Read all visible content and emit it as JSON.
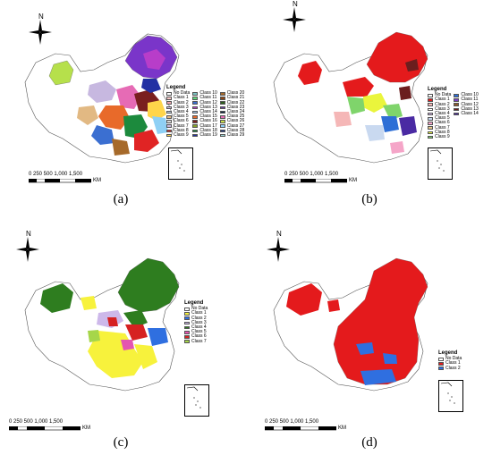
{
  "panels": [
    {
      "label": "(a)",
      "north": "N",
      "legend_title": "Legend",
      "scale": {
        "labels": "0  250 500   1,000    1,500",
        "unit": "KM"
      },
      "legend": [
        {
          "label": "No Data",
          "color": "#ffffff"
        },
        {
          "label": "Class 1",
          "color": "#f6c6c6"
        },
        {
          "label": "Class 2",
          "color": "#f3a7b0"
        },
        {
          "label": "Class 3",
          "color": "#d9c3e6"
        },
        {
          "label": "Class 4",
          "color": "#c3d6e8"
        },
        {
          "label": "Class 5",
          "color": "#e2b983"
        },
        {
          "label": "Class 6",
          "color": "#d9d9d9"
        },
        {
          "label": "Class 7",
          "color": "#c7b8e0"
        },
        {
          "label": "Class 8",
          "color": "#e02424"
        },
        {
          "label": "Class 9",
          "color": "#ffd54a"
        },
        {
          "label": "Class 10",
          "color": "#7cc4c4"
        },
        {
          "label": "Class 11",
          "color": "#5fd67a"
        },
        {
          "label": "Class 12",
          "color": "#3b6fd1"
        },
        {
          "label": "Class 13",
          "color": "#b83dc9"
        },
        {
          "label": "Class 14",
          "color": "#a3c8f0"
        },
        {
          "label": "Class 15",
          "color": "#e86a2a"
        },
        {
          "label": "Class 16",
          "color": "#7a1f1f"
        },
        {
          "label": "Class 17",
          "color": "#88a32b"
        },
        {
          "label": "Class 18",
          "color": "#1c8a3d"
        },
        {
          "label": "Class 19",
          "color": "#2230a3"
        },
        {
          "label": "Class 20",
          "color": "#a66a2a"
        },
        {
          "label": "Class 21",
          "color": "#8b4513"
        },
        {
          "label": "Class 22",
          "color": "#2e5e1e"
        },
        {
          "label": "Class 23",
          "color": "#6b3fa0"
        },
        {
          "label": "Class 24",
          "color": "#0d2240"
        },
        {
          "label": "Class 25",
          "color": "#e66bb5"
        },
        {
          "label": "Class 26",
          "color": "#c9e04b"
        },
        {
          "label": "Class 27",
          "color": "#8fd0f5"
        },
        {
          "label": "Class 28",
          "color": "#1e3a8a"
        },
        {
          "label": "Class 29",
          "color": "#9ed9d6"
        }
      ]
    },
    {
      "label": "(b)",
      "north": "N",
      "legend_title": "Legend",
      "scale": {
        "labels": "0  250 500   1,000    1,500",
        "unit": "KM"
      },
      "legend": [
        {
          "label": "No Data",
          "color": "#ffffff"
        },
        {
          "label": "Class 1",
          "color": "#e41a1c"
        },
        {
          "label": "Class 2",
          "color": "#f5b7b7"
        },
        {
          "label": "Class 3",
          "color": "#ffffff"
        },
        {
          "label": "Class 4",
          "color": "#d4b5e8"
        },
        {
          "label": "Class 5",
          "color": "#c9d9f0"
        },
        {
          "label": "Class 6",
          "color": "#f5a5c8"
        },
        {
          "label": "Class 7",
          "color": "#e8c78a"
        },
        {
          "label": "Class 8",
          "color": "#eaf53c"
        },
        {
          "label": "Class 9",
          "color": "#7fd46b"
        },
        {
          "label": "Class 10",
          "color": "#2e6fd6"
        },
        {
          "label": "Class 11",
          "color": "#7a3fc9"
        },
        {
          "label": "Class 12",
          "color": "#8b5a2b"
        },
        {
          "label": "Class 13",
          "color": "#6b1e1e"
        },
        {
          "label": "Class 14",
          "color": "#4a2aa3"
        }
      ]
    },
    {
      "label": "(c)",
      "north": "N",
      "legend_title": "Legend",
      "scale": {
        "labels": "0  250 500   1,000    1,500",
        "unit": "KM"
      },
      "legend": [
        {
          "label": "No Data",
          "color": "#ffffff"
        },
        {
          "label": "Class 1",
          "color": "#f7f23c"
        },
        {
          "label": "Class 2",
          "color": "#2f6fe0"
        },
        {
          "label": "Class 3",
          "color": "#cdb8ea"
        },
        {
          "label": "Class 4",
          "color": "#2e7d1f"
        },
        {
          "label": "Class 5",
          "color": "#e455b0"
        },
        {
          "label": "Class 6",
          "color": "#d62121"
        },
        {
          "label": "Class 7",
          "color": "#a6d64a"
        }
      ]
    },
    {
      "label": "(d)",
      "north": "N",
      "legend_title": "Legend",
      "scale": {
        "labels": "0  250 500   1,000    1,500",
        "unit": "KM"
      },
      "legend": [
        {
          "label": "No Data",
          "color": "#ffffff"
        },
        {
          "label": "Class 1",
          "color": "#e41a1c"
        },
        {
          "label": "Class 2",
          "color": "#2f6fe0"
        }
      ]
    }
  ]
}
